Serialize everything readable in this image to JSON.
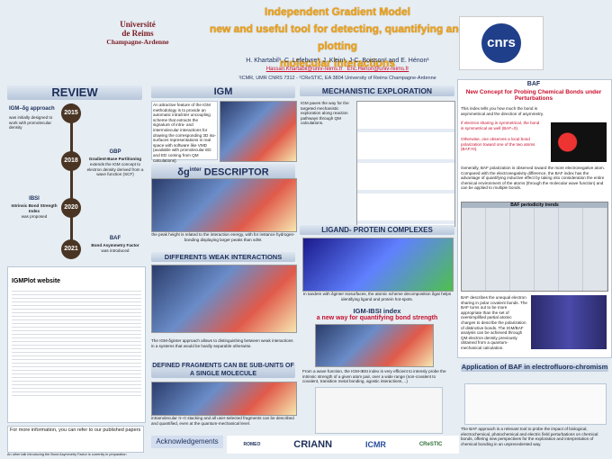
{
  "header": {
    "title_lines": [
      "Independent Gradient Model",
      "new and useful tool for detecting, quantifying and plotting",
      "molecular interactions"
    ],
    "authors": "H. Khartabil¹, C. Lefebvre¹, J. Klein¹, J-C. Boisson² and E. Hénon¹",
    "emails": [
      "Hassan.Khartabil@univ-reims.fr",
      "Eric.Henon@univ-reims.fr"
    ],
    "affiliation": "¹ICMR, UMR CNRS 7312 - ²CReSTIC, EA 3804 University of Reims Champagne-Ardenne",
    "university": [
      "Université",
      "de Reims",
      "Champagne-Ardenne"
    ],
    "cnrs": "cnrs"
  },
  "review": {
    "title": "REVIEW",
    "timeline": [
      {
        "year": "2015",
        "label": "IGM–δg approach",
        "text": "was initially designed to work with promolecular density"
      },
      {
        "year": "2018",
        "label": "GBP",
        "sublabel": "Gradient-Base Partitioning",
        "text": "extends the IGM concept to electron density derived from a wave function (SCF)"
      },
      {
        "year": "2020",
        "label": "IBSI",
        "sublabel": "Intrinsic Bond Strength Index",
        "text": "was proposed"
      },
      {
        "year": "2021",
        "label": "BAF",
        "sublabel": "Bond Asymmetry Factor",
        "text": "was introduced"
      }
    ],
    "website": "IGMPlot website",
    "more_info": "For more information, you can refer to our published papers",
    "footer": "An other talk introducing the Bond Asymmetry Factor is currently in preparation"
  },
  "igm": {
    "title": "IGM",
    "text": "An attractive feature of the IGM methodology is to provide an automatic intra/inter uncoupling scheme that extracts the signature of intra- and intermolecular interactions for drawing the corresponding 3D iso-surfaces representations in real space with software like VMD (available with promolecular ED and ED coming from QM calculations)."
  },
  "descriptor": {
    "symbol": "δg",
    "superscript": "inter",
    "title": "DESCRIPTOR",
    "caption": "the peak height is related to the interaction energy, with for instance hydrogen-bonding displaying larger peaks than vdW."
  },
  "weak": {
    "title": "DIFFERENTS WEAK INTERACTIONS",
    "text": "The IGM-δginter approach allows to distinguishing between weak interactions in a systems that would be hardly separable otherwise."
  },
  "fragments": {
    "title": "DEFINED FRAGMENTS CAN BE SUB-UNITS OF A SINGLE MOLECULE",
    "text": "intramolecular π–π stacking and all user-selected fragments can be described and quantified, even at the quantum-mechanical level."
  },
  "mechanistic": {
    "title": "MECHANISTIC EXPLORATION",
    "text": "IGM paves the way for the targeted mechanistic exploration along reaction pathways through QM calculations."
  },
  "ligand": {
    "title": "LIGAND- PROTEIN COMPLEXES",
    "caption": "In tandem with δginter isosurfaces, the atomic scheme decomposition δgat helps identifying ligand and protein hot-spots."
  },
  "ibsi": {
    "title": "IGM-IBSI index",
    "subtitle": "a new way for quantifying bond strength",
    "text": "From a wave function, the IGM-IBSI index is very efficient to intensly probe the intrinsic strength of a given atom pair, over a wide range (non-covalent to covalent, transition metal bonding, agostic interactions, ..)"
  },
  "baf": {
    "title": "BAF",
    "subtitle": "New Concept for Probing Chemical Bonds under Perturbations",
    "intro": "This index tells you how much the bond is asymmetrical and the direction of asymmetry.",
    "bullets": [
      "If electron sharing is symmetrical, the bond is symmetrical as well (BAF=0).",
      "Otherwise, one observes a local bond polarization toward one of the two atoms (BAF>0)."
    ],
    "text": "Generally, BAF polarization is observed toward the more electronegative atom. Compared with the electronegativity difference, the BAF index has the advantage of quantifying inductive effect by taking into consideration the entire chemical environment of the atoms (through the molecular wave function) and can be applied to multiple bonds.",
    "table_title": "BAF periodicity trends",
    "describe": "BAF describes the unequal electron sharing in polar covalent bonds. The BAF turns out to be more appropriate than the set of oversimplified partial atomic charges to describe the polarization of distinctive bonds. The IGM/BAF analysis can be achieved through QM electron density previously obtained from a quantum-mechanical calculation.",
    "app_title": "Application of BAF in electrofluoro-chromism",
    "conclusion": "The BAF approach is a relevant tool to probe the impact of biological, electrochemical, photochemical and electric field perturbations on chemical bonds, offering new perspectives for the exploration and interpretation of chemical bonding in an unprecedented way."
  },
  "acknowledgements": {
    "title": "Acknowledgements",
    "logos": [
      "ROMEO",
      "CRIANN",
      "ICMR",
      "CReSTIC"
    ]
  }
}
